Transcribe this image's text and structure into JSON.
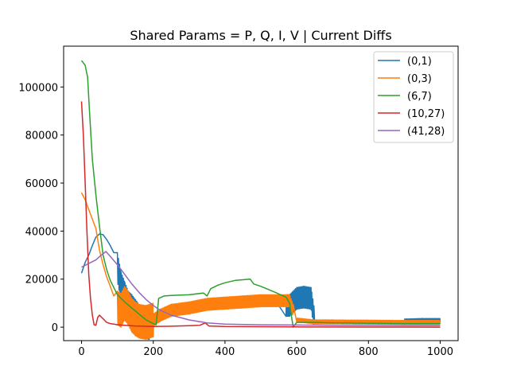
{
  "chart_data": {
    "type": "line",
    "title": "Shared Params = P, Q, I, V | Current Diffs",
    "xlabel": "",
    "ylabel": "",
    "xlim": [
      -50,
      1050
    ],
    "ylim": [
      -5600,
      117000
    ],
    "xticks": [
      0,
      200,
      400,
      600,
      800,
      1000
    ],
    "yticks": [
      0,
      20000,
      40000,
      60000,
      80000,
      100000
    ],
    "grid": false,
    "legend_position": "upper right",
    "series": [
      {
        "name": "(0,1)",
        "color": "#1f77b4",
        "points": [
          [
            0,
            22500
          ],
          [
            10,
            27000
          ],
          [
            20,
            30000
          ],
          [
            30,
            34000
          ],
          [
            40,
            37500
          ],
          [
            50,
            38800
          ],
          [
            60,
            38500
          ],
          [
            70,
            36500
          ],
          [
            80,
            34000
          ],
          [
            90,
            31000
          ],
          [
            100,
            25000
          ],
          [
            110,
            17000
          ],
          [
            120,
            13000
          ],
          [
            130,
            9000
          ],
          [
            140,
            7500
          ],
          [
            150,
            5500
          ],
          [
            160,
            3500
          ],
          [
            170,
            2000
          ],
          [
            180,
            1200
          ],
          [
            190,
            900
          ],
          [
            200,
            1500
          ],
          [
            220,
            3000
          ],
          [
            260,
            5500
          ],
          [
            300,
            7000
          ],
          [
            350,
            8000
          ],
          [
            400,
            8500
          ],
          [
            450,
            8800
          ],
          [
            500,
            8900
          ],
          [
            550,
            9000
          ],
          [
            580,
            9000
          ],
          [
            600,
            12000
          ],
          [
            620,
            12500
          ],
          [
            640,
            12000
          ],
          [
            650,
            2500
          ],
          [
            700,
            2600
          ],
          [
            800,
            2700
          ],
          [
            900,
            2800
          ],
          [
            950,
            3000
          ],
          [
            1000,
            3000
          ]
        ],
        "noise": [
          [
            100,
            190,
            12000
          ],
          [
            570,
            648,
            9000
          ],
          [
            900,
            1000,
            1200
          ]
        ]
      },
      {
        "name": "(0,3)",
        "color": "#ff7f0e",
        "points": [
          [
            0,
            56000
          ],
          [
            10,
            53000
          ],
          [
            20,
            49000
          ],
          [
            30,
            45000
          ],
          [
            40,
            41000
          ],
          [
            50,
            32000
          ],
          [
            60,
            26000
          ],
          [
            70,
            21000
          ],
          [
            80,
            17000
          ],
          [
            90,
            13000
          ],
          [
            100,
            8000
          ],
          [
            110,
            7000
          ],
          [
            120,
            10000
          ],
          [
            130,
            8000
          ],
          [
            140,
            5000
          ],
          [
            150,
            3500
          ],
          [
            160,
            2500
          ],
          [
            170,
            2200
          ],
          [
            180,
            2000
          ],
          [
            200,
            3000
          ],
          [
            220,
            5000
          ],
          [
            250,
            7000
          ],
          [
            300,
            8000
          ],
          [
            350,
            9500
          ],
          [
            400,
            10000
          ],
          [
            450,
            10500
          ],
          [
            500,
            11000
          ],
          [
            550,
            11000
          ],
          [
            580,
            11000
          ],
          [
            600,
            3000
          ],
          [
            650,
            2200
          ],
          [
            700,
            2200
          ],
          [
            800,
            2100
          ],
          [
            900,
            2000
          ],
          [
            1000,
            2000
          ]
        ],
        "noise": [
          [
            100,
            200,
            14000
          ],
          [
            200,
            590,
            5000
          ],
          [
            600,
            1000,
            1600
          ]
        ]
      },
      {
        "name": "(6,7)",
        "color": "#2ca02c",
        "points": [
          [
            0,
            111000
          ],
          [
            10,
            109000
          ],
          [
            17,
            104000
          ],
          [
            22,
            90000
          ],
          [
            30,
            70000
          ],
          [
            40,
            55000
          ],
          [
            50,
            42000
          ],
          [
            60,
            30000
          ],
          [
            70,
            24000
          ],
          [
            80,
            19500
          ],
          [
            90,
            16500
          ],
          [
            100,
            13500
          ],
          [
            120,
            10500
          ],
          [
            140,
            8000
          ],
          [
            160,
            5500
          ],
          [
            180,
            3000
          ],
          [
            200,
            1500
          ],
          [
            208,
            1000
          ],
          [
            215,
            12000
          ],
          [
            230,
            13000
          ],
          [
            250,
            13200
          ],
          [
            300,
            13500
          ],
          [
            340,
            14200
          ],
          [
            350,
            13000
          ],
          [
            360,
            16000
          ],
          [
            380,
            17500
          ],
          [
            400,
            18500
          ],
          [
            430,
            19500
          ],
          [
            470,
            20000
          ],
          [
            480,
            18000
          ],
          [
            500,
            17000
          ],
          [
            540,
            14500
          ],
          [
            570,
            12500
          ],
          [
            580,
            10000
          ],
          [
            585,
            5000
          ],
          [
            590,
            0
          ],
          [
            600,
            2000
          ],
          [
            650,
            2000
          ],
          [
            700,
            1800
          ],
          [
            800,
            1600
          ],
          [
            900,
            1500
          ],
          [
            1000,
            1500
          ]
        ],
        "noise": []
      },
      {
        "name": "(10,27)",
        "color": "#d62728",
        "points": [
          [
            0,
            94000
          ],
          [
            5,
            80000
          ],
          [
            10,
            60000
          ],
          [
            15,
            40000
          ],
          [
            20,
            22000
          ],
          [
            25,
            12000
          ],
          [
            30,
            5000
          ],
          [
            35,
            1000
          ],
          [
            40,
            800
          ],
          [
            45,
            4000
          ],
          [
            50,
            5000
          ],
          [
            60,
            3500
          ],
          [
            70,
            2000
          ],
          [
            80,
            1500
          ],
          [
            90,
            1300
          ],
          [
            100,
            1000
          ],
          [
            150,
            500
          ],
          [
            200,
            300
          ],
          [
            250,
            400
          ],
          [
            300,
            600
          ],
          [
            330,
            800
          ],
          [
            345,
            1800
          ],
          [
            355,
            500
          ],
          [
            400,
            300
          ],
          [
            500,
            200
          ],
          [
            600,
            100
          ],
          [
            700,
            50
          ],
          [
            800,
            30
          ],
          [
            1000,
            0
          ]
        ],
        "noise": []
      },
      {
        "name": "(41,28)",
        "color": "#9467bd",
        "points": [
          [
            0,
            25000
          ],
          [
            20,
            26500
          ],
          [
            40,
            28000
          ],
          [
            55,
            30000
          ],
          [
            68,
            31500
          ],
          [
            80,
            29500
          ],
          [
            100,
            26000
          ],
          [
            120,
            22000
          ],
          [
            140,
            18000
          ],
          [
            160,
            14500
          ],
          [
            180,
            11500
          ],
          [
            200,
            9000
          ],
          [
            220,
            7000
          ],
          [
            250,
            5000
          ],
          [
            300,
            3000
          ],
          [
            350,
            1800
          ],
          [
            400,
            1300
          ],
          [
            500,
            1000
          ],
          [
            600,
            900
          ],
          [
            700,
            800
          ],
          [
            800,
            700
          ],
          [
            900,
            650
          ],
          [
            1000,
            600
          ]
        ],
        "noise": []
      }
    ]
  }
}
